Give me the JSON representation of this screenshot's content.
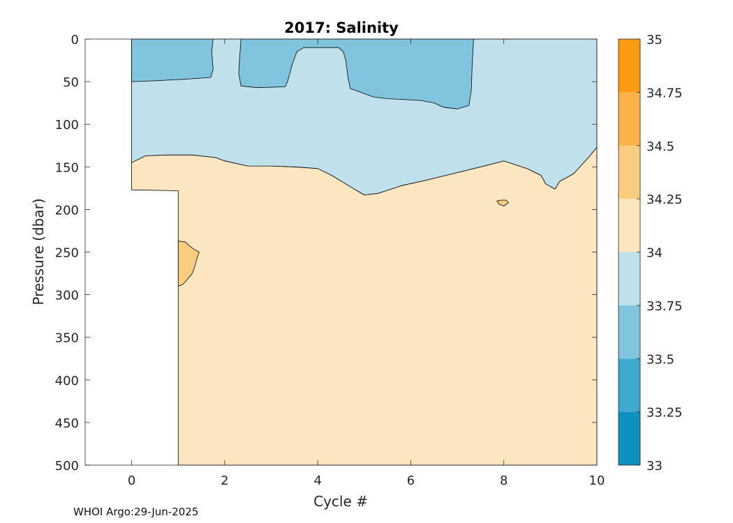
{
  "chart_data": {
    "type": "contour",
    "title": "2017:  Salinity",
    "xlabel": "Cycle #",
    "ylabel": "Pressure (dbar)",
    "xlim": [
      -1,
      10
    ],
    "ylim": [
      0,
      500
    ],
    "y_reversed": true,
    "xticks": [
      "0",
      "2",
      "4",
      "6",
      "8",
      "10"
    ],
    "xtick_values": [
      0,
      2,
      4,
      6,
      8,
      10
    ],
    "yticks": [
      "0",
      "50",
      "100",
      "150",
      "200",
      "250",
      "300",
      "350",
      "400",
      "450",
      "500"
    ],
    "ytick_values": [
      0,
      50,
      100,
      150,
      200,
      250,
      300,
      350,
      400,
      450,
      500
    ],
    "colorbar": {
      "levels": [
        33,
        33.25,
        33.5,
        33.75,
        34,
        34.25,
        34.5,
        34.75,
        35
      ],
      "labels": [
        "33",
        "33.25",
        "33.5",
        "33.75",
        "34",
        "34.25",
        "34.5",
        "34.75",
        "35"
      ],
      "colors": [
        "#0d92bf",
        "#3fa8cf",
        "#81c4de",
        "#c0e0ec",
        "#fce6bf",
        "#f9cc80",
        "#fbb349",
        "#fb9b14"
      ]
    },
    "regions": [
      {
        "band": "34-34.25",
        "color": "#fce6bf",
        "boundary": [
          [
            0,
            145
          ],
          [
            0.3,
            137
          ],
          [
            0.8,
            136
          ],
          [
            1.3,
            136
          ],
          [
            1.8,
            139
          ],
          [
            2,
            143
          ],
          [
            2.5,
            149
          ],
          [
            3,
            149
          ],
          [
            3.5,
            150
          ],
          [
            4,
            152
          ],
          [
            4.3,
            160
          ],
          [
            4.6,
            170
          ],
          [
            5,
            183
          ],
          [
            5.3,
            181
          ],
          [
            5.8,
            172
          ],
          [
            6.3,
            166
          ],
          [
            6.9,
            158
          ],
          [
            7.5,
            150
          ],
          [
            8,
            143
          ],
          [
            8.5,
            152
          ],
          [
            8.8,
            160
          ],
          [
            8.9,
            170
          ],
          [
            9.1,
            176
          ],
          [
            9.2,
            167
          ],
          [
            9.5,
            158
          ],
          [
            9.8,
            140
          ],
          [
            10,
            127
          ],
          [
            10,
            500
          ],
          [
            1,
            500
          ],
          [
            1,
            178
          ],
          [
            0,
            177
          ]
        ]
      },
      {
        "band": "33.75-34",
        "color": "#c0e0ec",
        "boundary": [
          [
            0,
            0
          ],
          [
            10,
            0
          ],
          [
            10,
            127
          ],
          [
            9.8,
            140
          ],
          [
            9.5,
            158
          ],
          [
            9.2,
            167
          ],
          [
            9.1,
            176
          ],
          [
            8.9,
            170
          ],
          [
            8.8,
            160
          ],
          [
            8.5,
            152
          ],
          [
            8,
            143
          ],
          [
            7.5,
            150
          ],
          [
            6.9,
            158
          ],
          [
            6.3,
            166
          ],
          [
            5.8,
            172
          ],
          [
            5.3,
            181
          ],
          [
            5,
            183
          ],
          [
            4.6,
            170
          ],
          [
            4.3,
            160
          ],
          [
            4,
            152
          ],
          [
            3.5,
            150
          ],
          [
            3,
            149
          ],
          [
            2.5,
            149
          ],
          [
            2,
            143
          ],
          [
            1.8,
            139
          ],
          [
            1.3,
            136
          ],
          [
            0.8,
            136
          ],
          [
            0.3,
            137
          ],
          [
            0,
            145
          ]
        ]
      },
      {
        "band": "33.5-33.75",
        "color": "#81c4de",
        "boundary": [
          [
            0,
            0
          ],
          [
            1.75,
            0
          ],
          [
            1.72,
            15
          ],
          [
            1.75,
            35
          ],
          [
            1.7,
            45
          ],
          [
            1.2,
            47
          ],
          [
            0.5,
            49
          ],
          [
            0,
            50
          ]
        ]
      },
      {
        "band": "33.5-33.75",
        "color": "#81c4de",
        "boundary": [
          [
            2.35,
            0
          ],
          [
            7.35,
            0
          ],
          [
            7.32,
            30
          ],
          [
            7.3,
            60
          ],
          [
            7.25,
            78
          ],
          [
            7,
            82
          ],
          [
            6.7,
            80
          ],
          [
            6.5,
            75
          ],
          [
            6.2,
            72
          ],
          [
            5.5,
            70
          ],
          [
            5.2,
            68
          ],
          [
            4.9,
            62
          ],
          [
            4.7,
            58
          ],
          [
            4.65,
            45
          ],
          [
            4.6,
            25
          ],
          [
            4.55,
            15
          ],
          [
            4.45,
            10
          ],
          [
            3.7,
            10
          ],
          [
            3.55,
            15
          ],
          [
            3.45,
            30
          ],
          [
            3.35,
            50
          ],
          [
            3.3,
            56
          ],
          [
            2.7,
            57
          ],
          [
            2.35,
            55
          ],
          [
            2.3,
            40
          ],
          [
            2.33,
            15
          ]
        ]
      },
      {
        "band": "34.25-34.5",
        "color": "#f9cc80",
        "boundary": [
          [
            1,
            237
          ],
          [
            1.15,
            238
          ],
          [
            1.25,
            243
          ],
          [
            1.35,
            247
          ],
          [
            1.45,
            250
          ],
          [
            1.4,
            258
          ],
          [
            1.35,
            268
          ],
          [
            1.3,
            275
          ],
          [
            1.2,
            282
          ],
          [
            1.1,
            288
          ],
          [
            1,
            290
          ]
        ]
      },
      {
        "band": "34.25-34.5",
        "color": "#f9cc80",
        "boundary": [
          [
            7.85,
            190
          ],
          [
            7.95,
            189
          ],
          [
            8.05,
            189
          ],
          [
            8.1,
            192
          ],
          [
            8,
            196
          ],
          [
            7.9,
            194
          ]
        ]
      }
    ]
  },
  "footer": "WHOI Argo:29-Jun-2025"
}
